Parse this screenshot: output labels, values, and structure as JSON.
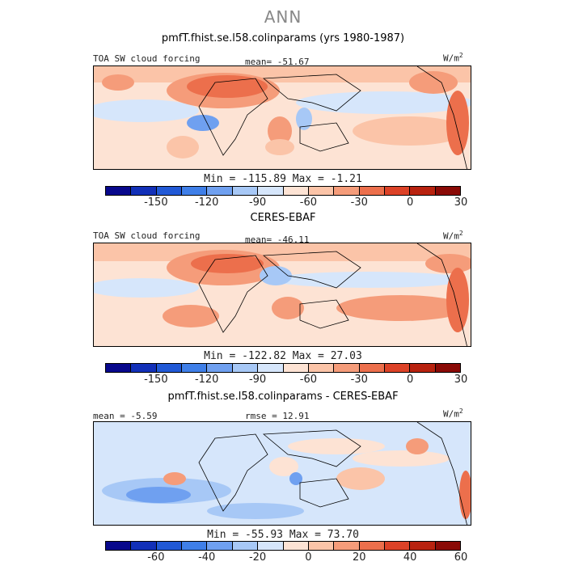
{
  "title": "ANN",
  "panels": [
    {
      "title": "pmfT.fhist.se.l58.colinparams (yrs 1980-1987)",
      "left_label": "TOA SW cloud forcing",
      "mid_label": "mean= -51.67",
      "units": "W/m",
      "units_sup": "2",
      "minmax": "Min = -115.89 Max =  -1.21",
      "ticks": [
        "-150",
        "-120",
        "-90",
        "-60",
        "-30",
        "0",
        "30"
      ]
    },
    {
      "title": "CERES-EBAF",
      "left_label": "TOA SW cloud forcing",
      "mid_label": "mean= -46.11",
      "units": "W/m",
      "units_sup": "2",
      "minmax": "Min = -122.82 Max =  27.03",
      "ticks": [
        "-150",
        "-120",
        "-90",
        "-60",
        "-30",
        "0",
        "30"
      ]
    },
    {
      "title": "pmfT.fhist.se.l58.colinparams - CERES-EBAF",
      "left_label": "mean =  -5.59",
      "mid_label": "rmse =  12.91",
      "units": "W/m",
      "units_sup": "2",
      "minmax": "Min = -55.93 Max =  73.70",
      "ticks": [
        "-60",
        "-40",
        "-20",
        "0",
        "20",
        "40",
        "60"
      ]
    }
  ],
  "colorbar": [
    "#08088c",
    "#1230b8",
    "#2159d6",
    "#3f7fe8",
    "#6fa0f0",
    "#a7c8f6",
    "#d6e6fb",
    "#fde3d4",
    "#fbc4a8",
    "#f59c7a",
    "#ec6f4c",
    "#dc4227",
    "#b8220f",
    "#8a0a06"
  ]
}
